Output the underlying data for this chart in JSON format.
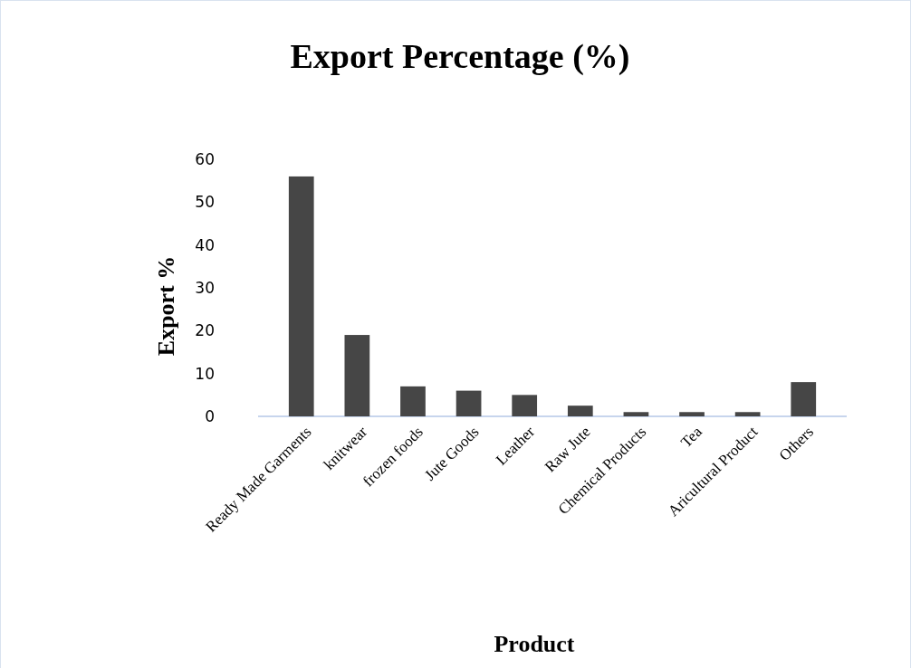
{
  "chart_data": {
    "type": "bar",
    "title": "Export Percentage (%)",
    "xlabel": "Product",
    "ylabel": "Export %",
    "categories": [
      "Ready Made Garments",
      "knitwear",
      "frozen foods",
      "Jute Goods",
      "Leather",
      "Raw Jute",
      "Chemical Products",
      "Tea",
      "Aricultural Product",
      "Others"
    ],
    "values": [
      56,
      19,
      7,
      6,
      5,
      2.5,
      1,
      1,
      1,
      8
    ],
    "color": "#464646",
    "ylim": [
      0,
      60
    ],
    "yticks": [
      0,
      10,
      20,
      30,
      40,
      50,
      60
    ],
    "grid": false
  }
}
